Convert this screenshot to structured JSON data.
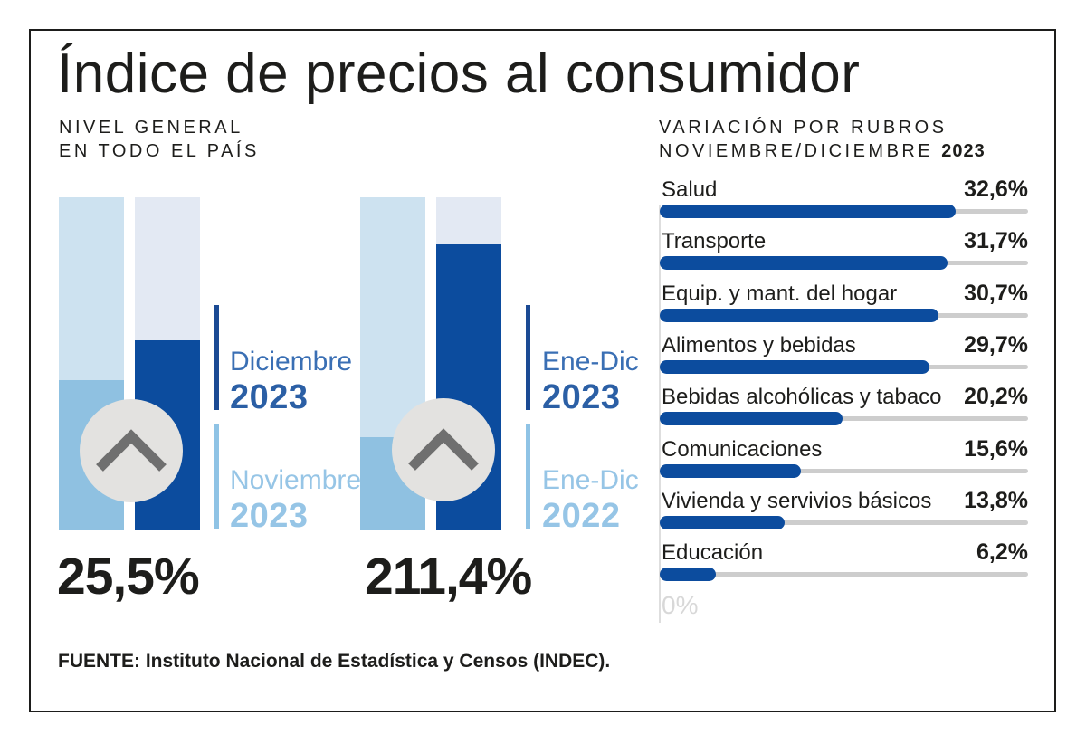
{
  "title": "Índice de precios al consumidor",
  "left_panel": {
    "subtitle_line1": "NIVEL GENERAL",
    "subtitle_line2": "EN TODO EL PAÍS"
  },
  "right_panel": {
    "heading_line1": "VARIACIÓN POR RUBROS",
    "heading_line2": "NOVIEMBRE/DICIEMBRE",
    "heading_year": "2023"
  },
  "chart_data": [
    {
      "type": "bar",
      "orientation": "vertical",
      "title": "NIVEL GENERAL EN TODO EL PAÍS",
      "groups": [
        {
          "headline_value_pct": 25.5,
          "headline_value_label": "25,5%",
          "top_label": {
            "line1": "Diciembre",
            "line2": "2023"
          },
          "bottom_label": {
            "line1": "Noviembre",
            "line2": "2023"
          },
          "series": [
            {
              "name": "Noviembre 2023",
              "fill_fraction": 0.45
            },
            {
              "name": "Diciembre 2023",
              "fill_fraction": 0.57
            }
          ]
        },
        {
          "headline_value_pct": 211.4,
          "headline_value_label": "211,4%",
          "top_label": {
            "line1": "Ene-Dic",
            "line2": "2023"
          },
          "bottom_label": {
            "line1": "Ene-Dic",
            "line2": "2022"
          },
          "series": [
            {
              "name": "Ene-Dic 2022",
              "fill_fraction": 0.28
            },
            {
              "name": "Ene-Dic 2023",
              "fill_fraction": 0.86
            }
          ]
        }
      ]
    },
    {
      "type": "bar",
      "orientation": "horizontal",
      "title": "VARIACIÓN POR RUBROS NOVIEMBRE/DICIEMBRE 2023",
      "categories": [
        "Salud",
        "Transporte",
        "Equip. y mant. del hogar",
        "Alimentos y bebidas",
        "Bebidas alcohólicas y tabaco",
        "Comunicaciones",
        "Vivienda y servivios básicos",
        "Educación"
      ],
      "values": [
        32.6,
        31.7,
        30.7,
        29.7,
        20.2,
        15.6,
        13.8,
        6.2
      ],
      "value_labels": [
        "32,6%",
        "31,7%",
        "30,7%",
        "29,7%",
        "20,2%",
        "15,6%",
        "13,8%",
        "6,2%"
      ],
      "xlim": [
        0,
        40.6
      ],
      "axis_zero_label": "0%",
      "grid": false,
      "legend": false
    }
  ],
  "icons": {
    "chevron_up": "chevron-up-icon"
  },
  "colors": {
    "dark_blue": "#0c4c9e",
    "medium_light_blue": "#8fc1e1",
    "light_blue_track": "#cde2f0",
    "pale_lavender_track": "#e3e9f3",
    "label_blue": "#3a6fb4",
    "label_blue_dark": "#2b5fa5",
    "label_light_blue": "#96c5e6",
    "tick_dark_blue": "#1b4a94",
    "tick_light_blue": "#8fc3e5",
    "bar_track_gray": "#cdcdcd",
    "circle_gray": "#e3e2e0",
    "chevron_gray": "#6f6f6f",
    "text_black": "#1d1d1b",
    "faint_gray": "#d8d8d8"
  },
  "source": "FUENTE: Instituto Nacional de Estadística y Censos (INDEC)."
}
